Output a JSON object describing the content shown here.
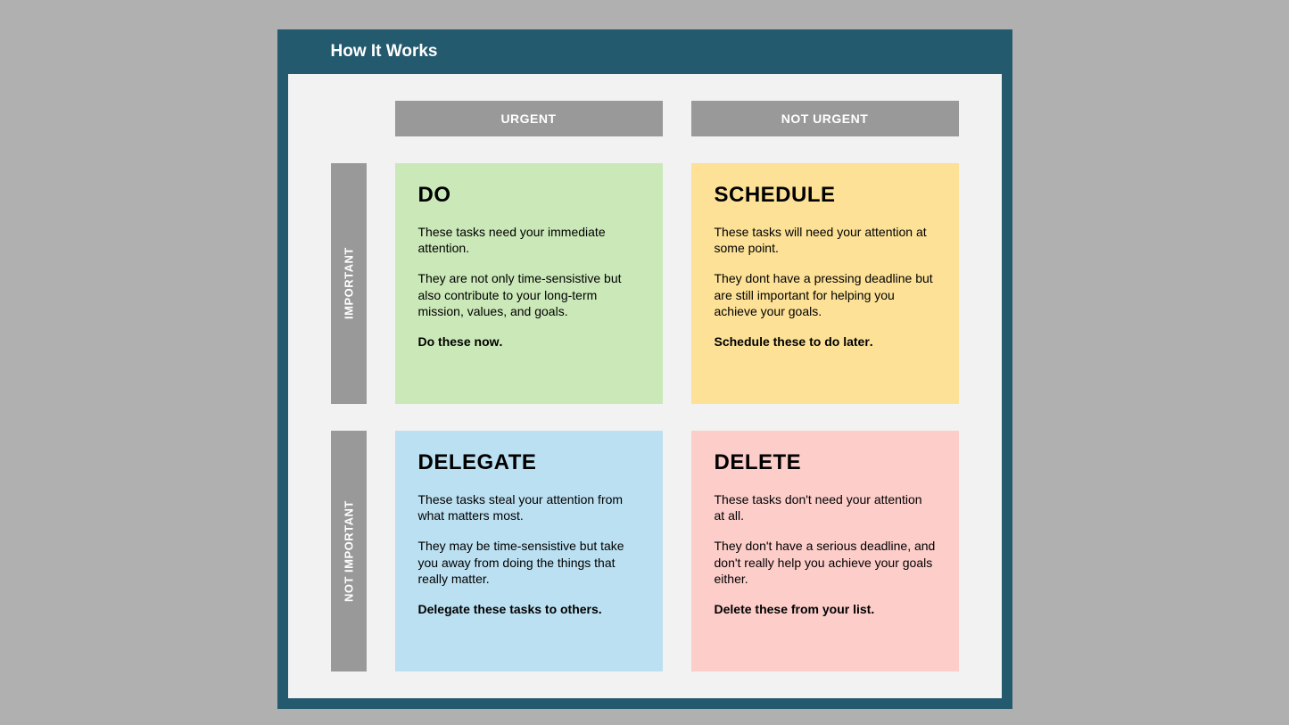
{
  "header": {
    "title": "How It Works"
  },
  "columns": [
    "URGENT",
    "NOT URGENT"
  ],
  "rows": [
    "IMPORTANT",
    "NOT IMPORTANT"
  ],
  "quadrants": {
    "do": {
      "title": "DO",
      "p1": "These tasks need your immediate attention.",
      "p2": "They are not only time-sensistive but also contribute to your long-term mission, values, and goals.",
      "action": "Do these now",
      "bg_color": "#cbe8b8"
    },
    "schedule": {
      "title": "SCHEDULE",
      "p1": "These tasks will need your attention at some point.",
      "p2": "They dont have a pressing deadline but are still important for helping you achieve your goals.",
      "action": "Schedule these to do later",
      "bg_color": "#fce196"
    },
    "delegate": {
      "title": "DELEGATE",
      "p1": "These tasks steal your attention from what matters most.",
      "p2": "They may be time-sensistive but take you away from doing the things that really matter.",
      "action": "Delegate these tasks to others",
      "bg_color": "#bbe0f1"
    },
    "delete": {
      "title": "DELETE",
      "p1": "These tasks don't need your attention at all.",
      "p2": "They don't have a serious deadline, and don't really help you achieve your goals either.",
      "action": "Delete these from your list",
      "bg_color": "#fccdc9"
    }
  },
  "styling": {
    "outer_bg": "#b0b0b0",
    "frame_bg": "#245a6e",
    "content_bg": "#f2f2f2",
    "header_text_color": "#ffffff",
    "axis_label_bg": "#999999",
    "axis_label_text_color": "#ffffff",
    "quadrant_title_fontsize": 24,
    "quadrant_body_fontsize": 14,
    "header_fontsize": 19,
    "axis_fontsize": 13
  }
}
